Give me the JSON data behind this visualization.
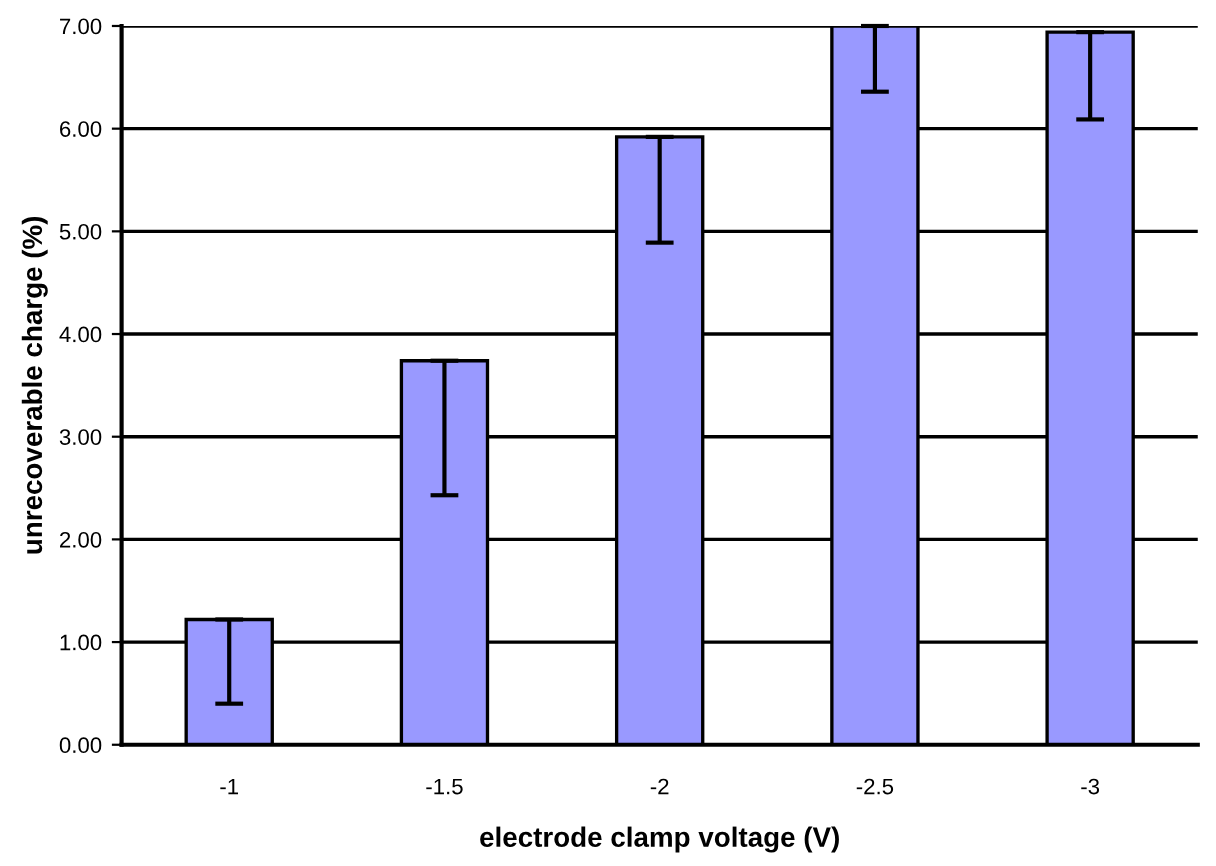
{
  "chart_data": {
    "type": "bar",
    "xlabel": "electrode clamp voltage (V)",
    "ylabel": "unrecoverable charge (%)",
    "categories": [
      "-1",
      "-1.5",
      "-2",
      "-2.5",
      "-3"
    ],
    "values": [
      1.22,
      3.74,
      5.92,
      7.0,
      6.94
    ],
    "errors": [
      [
        0.4,
        1.22
      ],
      [
        2.43,
        3.74
      ],
      [
        4.89,
        5.92
      ],
      [
        6.36,
        7.0
      ],
      [
        6.09,
        6.94
      ]
    ],
    "color": "#9999ff",
    "ylim": [
      0,
      7
    ],
    "yticks": [
      {
        "value": 0,
        "label": "0.00"
      },
      {
        "value": 1,
        "label": "1.00"
      },
      {
        "value": 2,
        "label": "2.00"
      },
      {
        "value": 3,
        "label": "3.00"
      },
      {
        "value": 4,
        "label": "4.00"
      },
      {
        "value": 5,
        "label": "5.00"
      },
      {
        "value": 6,
        "label": "6.00"
      },
      {
        "value": 7,
        "label": "7.00"
      }
    ],
    "grid": "y"
  }
}
